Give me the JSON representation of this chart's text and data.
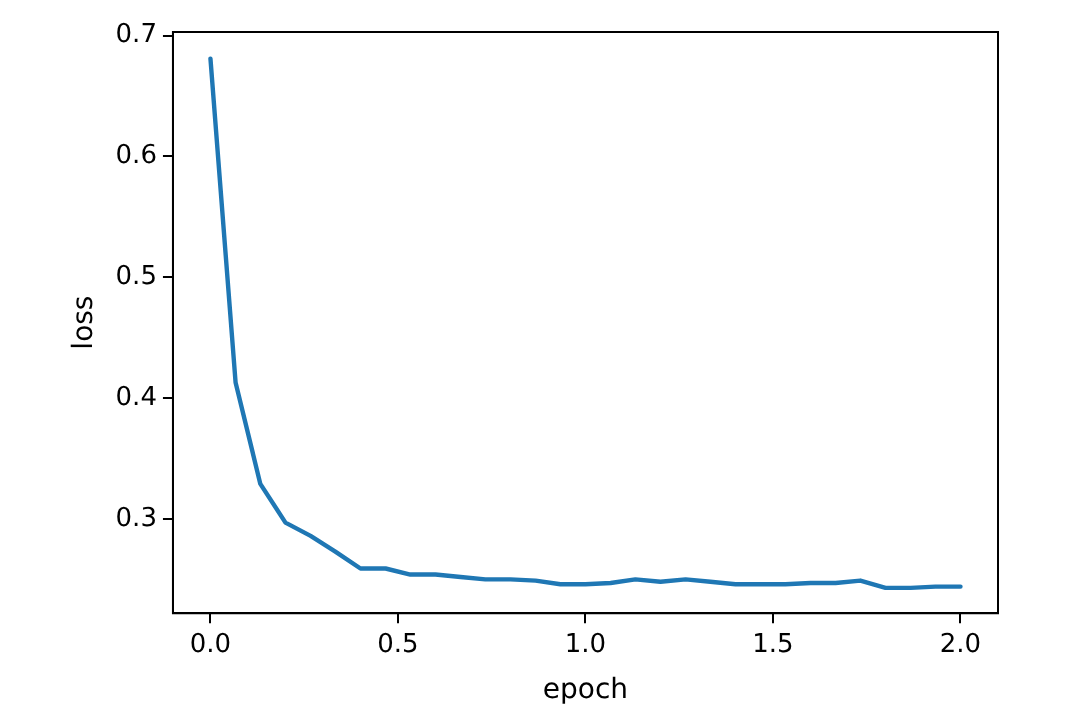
{
  "chart_data": {
    "type": "line",
    "xlabel": "epoch",
    "ylabel": "loss",
    "x": [
      0,
      0.067,
      0.133,
      0.2,
      0.267,
      0.333,
      0.4,
      0.467,
      0.533,
      0.6,
      0.667,
      0.733,
      0.8,
      0.867,
      0.933,
      1.0,
      1.067,
      1.133,
      1.2,
      1.267,
      1.333,
      1.4,
      1.467,
      1.533,
      1.6,
      1.667,
      1.733,
      1.8,
      1.867,
      1.933,
      2.0
    ],
    "series": [
      {
        "color": "#1f77b4",
        "values": [
          0.681,
          0.413,
          0.329,
          0.297,
          0.286,
          0.273,
          0.259,
          0.259,
          0.254,
          0.254,
          0.252,
          0.25,
          0.25,
          0.249,
          0.246,
          0.246,
          0.247,
          0.25,
          0.248,
          0.25,
          0.248,
          0.246,
          0.246,
          0.246,
          0.247,
          0.247,
          0.249,
          0.243,
          0.243,
          0.244,
          0.244
        ]
      }
    ],
    "xlim": [
      -0.1,
      2.1
    ],
    "ylim": [
      0.222,
      0.703
    ],
    "xticks": [
      {
        "value": 0,
        "label": "0.0"
      },
      0.5,
      {
        "value": 1,
        "label": "1.0"
      },
      1.5,
      {
        "value": 2,
        "label": "2.0"
      }
    ],
    "yticks": [
      0.3,
      0.4,
      0.5,
      0.6,
      0.7
    ],
    "grid": false,
    "legend": false,
    "marker": "none",
    "line_style": "solid"
  }
}
